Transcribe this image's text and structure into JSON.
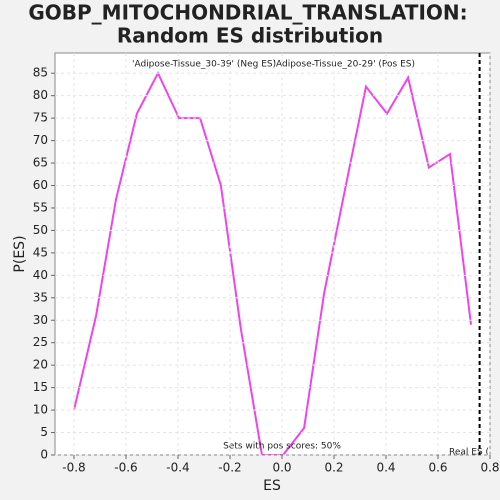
{
  "chart_data": {
    "type": "line",
    "title": "GOBP_MITOCHONDRIAL_TRANSLATION:",
    "subtitle": "Random ES distribution",
    "x_label": "ES",
    "y_label": "P(ES)",
    "legend": [
      "'Adipose-Tissue_30-39' (Neg ES)",
      "'Adipose-Tissue_20-29' (Pos ES)"
    ],
    "legend_colors": [
      "#2020c0",
      "#d02020"
    ],
    "annotation": "Sets with pos scores: 50%",
    "real_es_label": "Real ES (",
    "real_es": 0.76,
    "grid": true,
    "x": [
      -0.8,
      -0.715,
      -0.638,
      -0.558,
      -0.477,
      -0.396,
      -0.315,
      -0.235,
      -0.158,
      -0.077,
      0.004,
      0.085,
      0.162,
      0.242,
      0.323,
      0.404,
      0.485,
      0.565,
      0.646,
      0.727
    ],
    "series": [
      {
        "name": "P(ES)",
        "color": "#ee44ee",
        "values": [
          10,
          31,
          57,
          76,
          85,
          75,
          75,
          60,
          28,
          0,
          0,
          6,
          36,
          59,
          82,
          76,
          84,
          64,
          67,
          29
        ]
      }
    ],
    "xlim": [
      -0.873,
      0.8
    ],
    "xticks": [
      -0.8,
      -0.6,
      -0.4,
      -0.2,
      {
        "value": 0,
        "label": "0.0"
      },
      0.2,
      0.4,
      0.6,
      0.8
    ],
    "ylim": [
      0,
      89.5
    ],
    "yticks": [
      0,
      5,
      10,
      15,
      20,
      25,
      30,
      35,
      40,
      45,
      50,
      55,
      60,
      65,
      70,
      75,
      80,
      85
    ]
  }
}
